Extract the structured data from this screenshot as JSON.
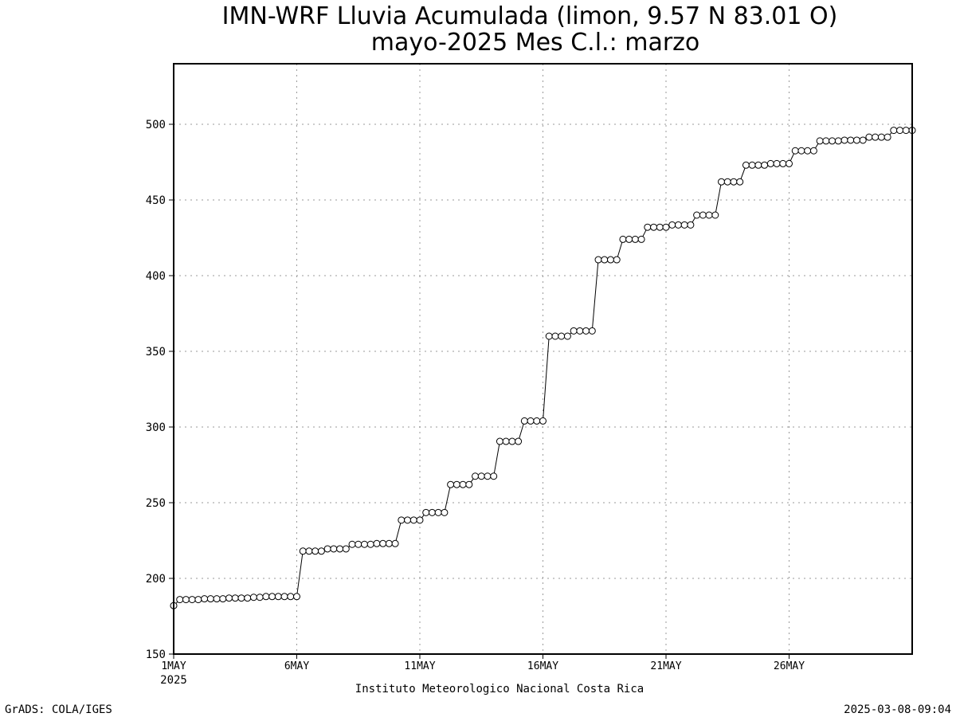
{
  "chart_data": {
    "type": "line",
    "title": "IMN-WRF  Lluvia Acumulada (limon, 9.57  N 83.01  O)",
    "subtitle": "mayo-2025 Mes C.l.: marzo",
    "xlabel": "Instituto Meteorologico Nacional Costa Rica",
    "ylabel": "",
    "ylim": [
      150,
      540
    ],
    "xlim": [
      0,
      30
    ],
    "y_ticks": [
      "150",
      "200",
      "250",
      "300",
      "350",
      "400",
      "450",
      "500"
    ],
    "x_ticks": [
      {
        "label": "1MAY",
        "sub": "2025",
        "x": 0
      },
      {
        "label": "6MAY",
        "sub": "",
        "x": 5
      },
      {
        "label": "11MAY",
        "sub": "",
        "x": 10
      },
      {
        "label": "16MAY",
        "sub": "",
        "x": 15
      },
      {
        "label": "21MAY",
        "sub": "",
        "x": 20
      },
      {
        "label": "26MAY",
        "sub": "",
        "x": 25
      }
    ],
    "grid": true,
    "marker": "open-circle",
    "x_step_days": 0.25,
    "series": [
      {
        "values": [
          182,
          186,
          186,
          186,
          186,
          186.5,
          186.5,
          186.5,
          186.5,
          187,
          187,
          187,
          187,
          187.5,
          187.5,
          188,
          188,
          188,
          188,
          188,
          188,
          218,
          218,
          218,
          218,
          219.5,
          219.5,
          219.5,
          219.5,
          222.5,
          222.5,
          222.5,
          222.5,
          223,
          223,
          223,
          223,
          238.5,
          238.5,
          238.5,
          238.5,
          243.5,
          243.5,
          243.5,
          243.5,
          262,
          262,
          262,
          262,
          267.5,
          267.5,
          267.5,
          267.5,
          290.5,
          290.5,
          290.5,
          290.5,
          304,
          304,
          304,
          304,
          360,
          360,
          360,
          360,
          363.5,
          363.5,
          363.5,
          363.5,
          410.5,
          410.5,
          410.5,
          410.5,
          424,
          424,
          424,
          424,
          432,
          432,
          432,
          432,
          433.5,
          433.5,
          433.5,
          433.5,
          440,
          440,
          440,
          440,
          462,
          462,
          462,
          462,
          473,
          473,
          473,
          473,
          474,
          474,
          474,
          474,
          482.5,
          482.5,
          482.5,
          482.5,
          489,
          489,
          489,
          489,
          489.5,
          489.5,
          489.5,
          489.5,
          491.5,
          491.5,
          491.5,
          491.5,
          496,
          496,
          496,
          496
        ]
      }
    ]
  },
  "footer": {
    "left": "GrADS: COLA/IGES",
    "right": "2025-03-08-09:04"
  }
}
